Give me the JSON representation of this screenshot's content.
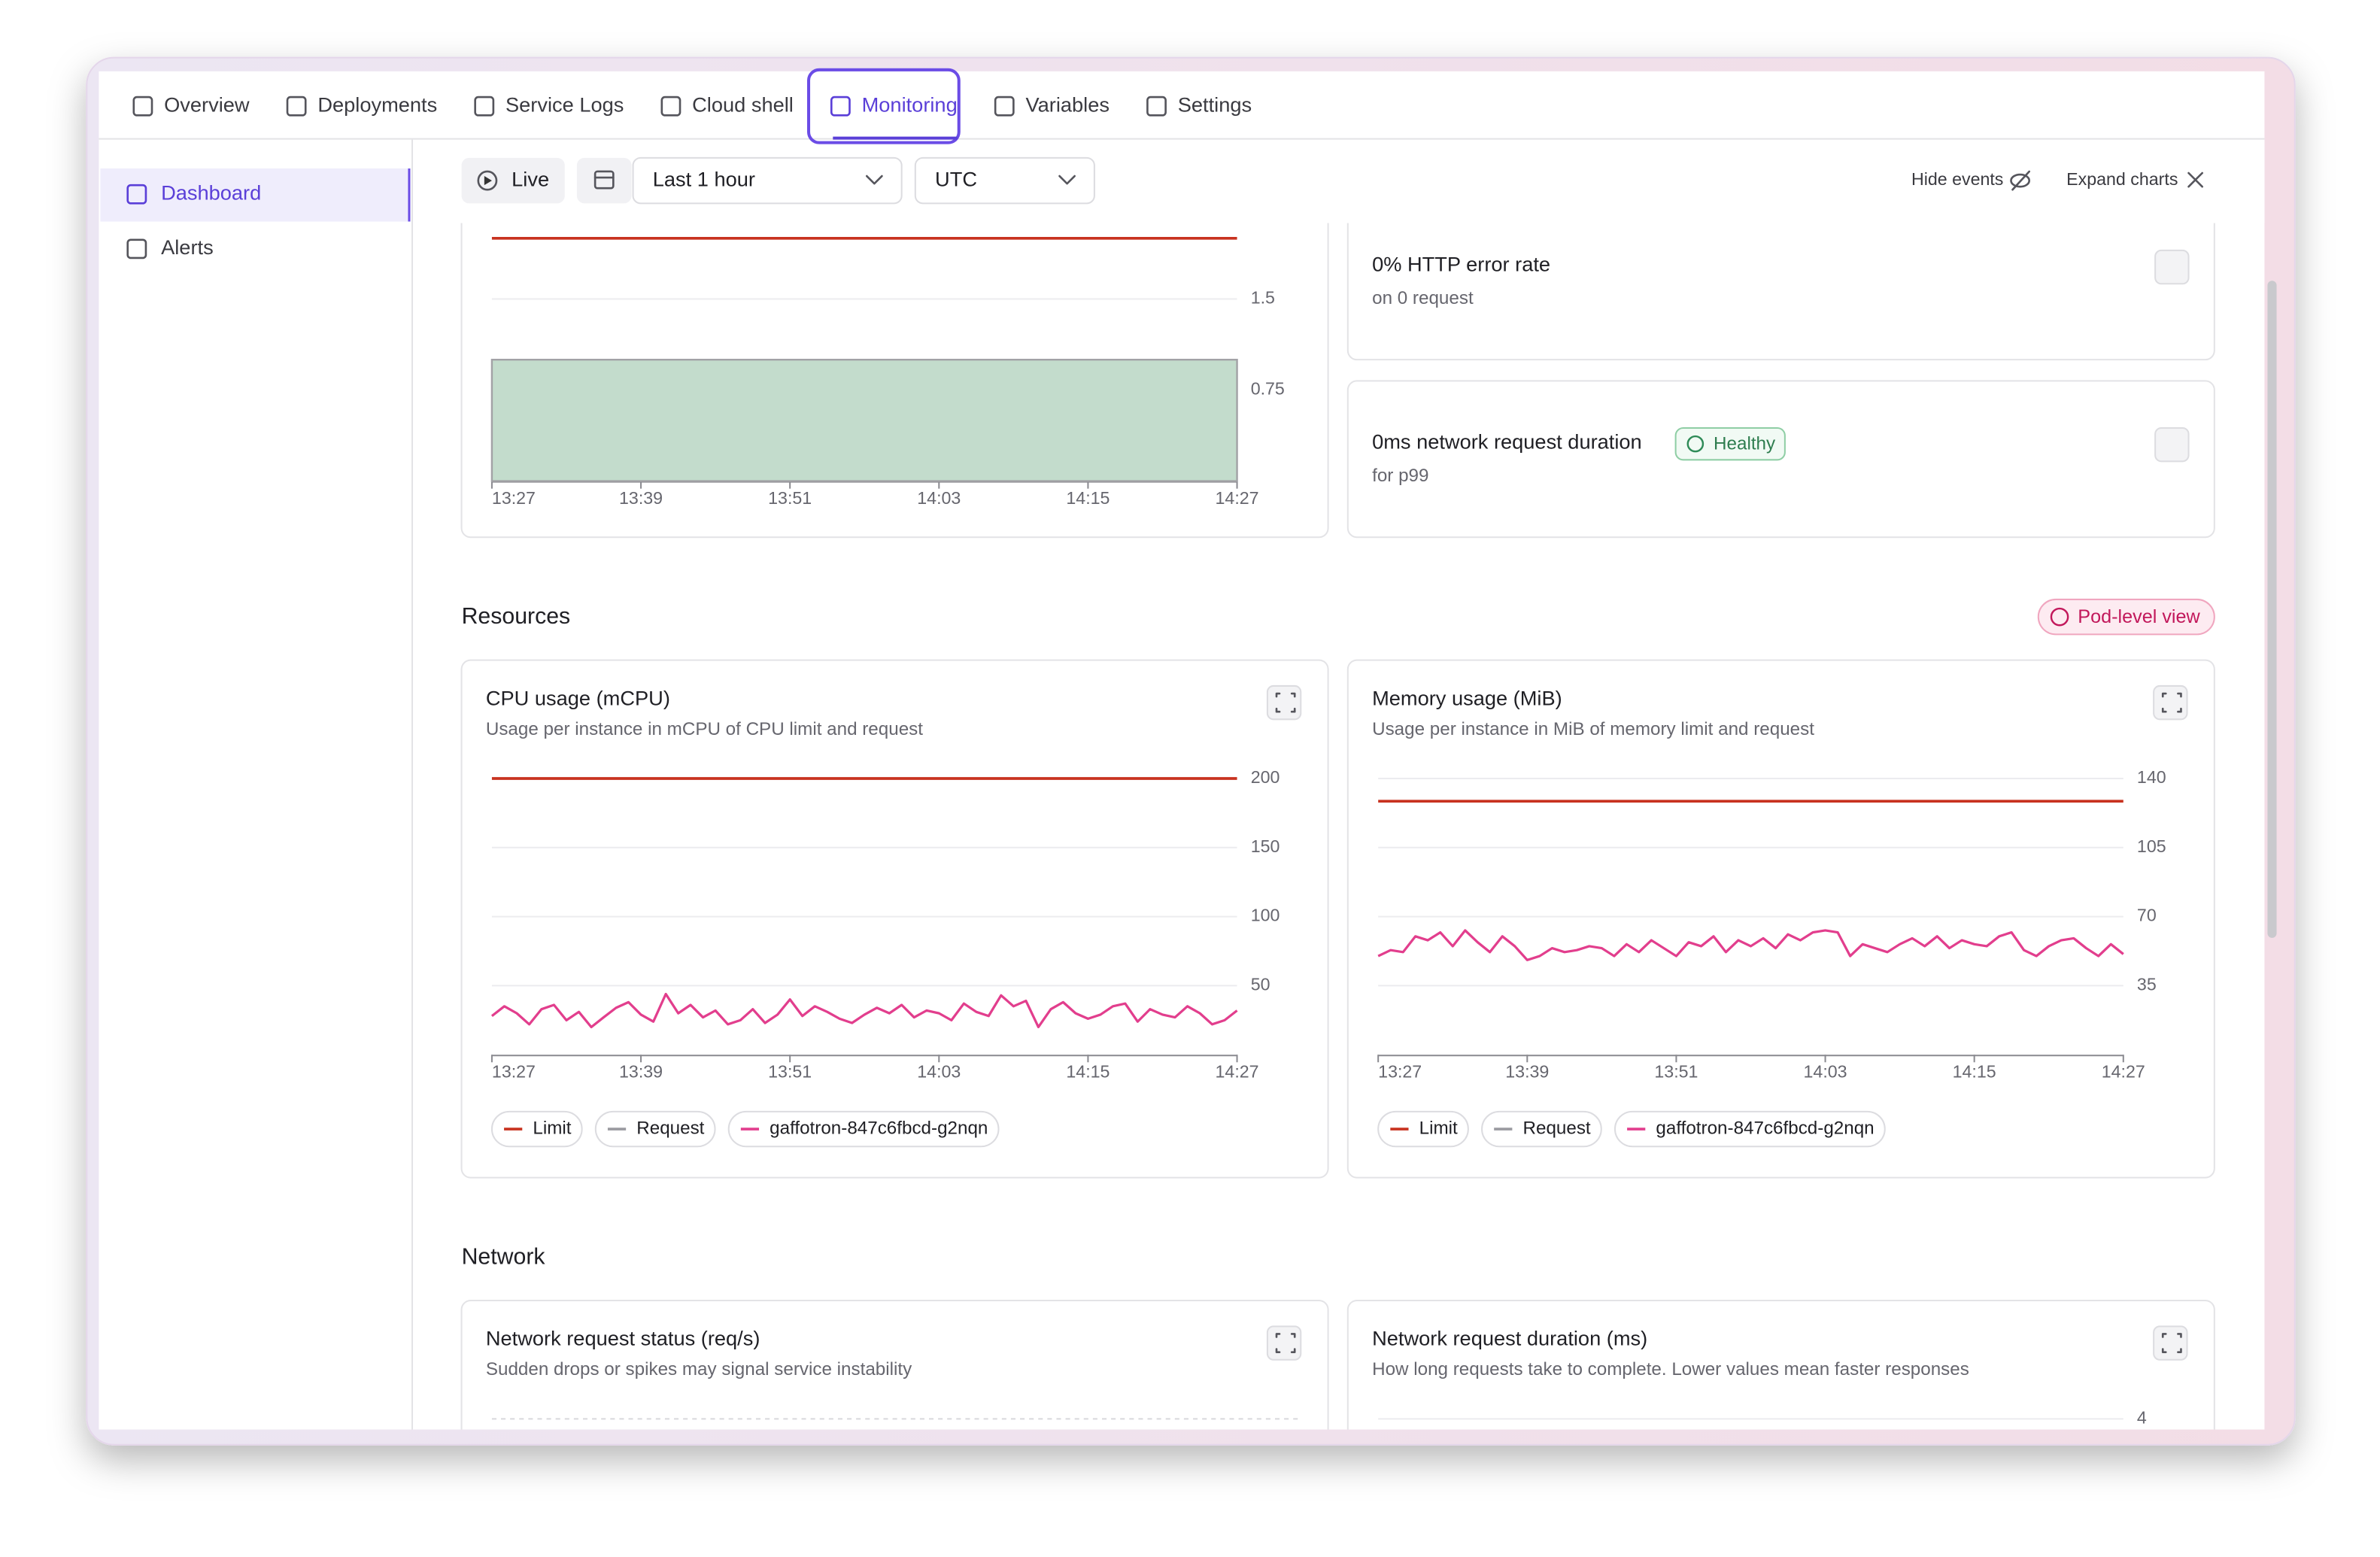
{
  "tabs": [
    "Overview",
    "Deployments",
    "Service Logs",
    "Cloud shell",
    "Monitoring",
    "Variables",
    "Settings"
  ],
  "active_tab": 4,
  "sidebar": {
    "items": [
      "Dashboard",
      "Alerts"
    ],
    "active": 0
  },
  "toolbar": {
    "live": "Live",
    "range": "Last 1 hour",
    "timezone": "UTC",
    "hide_events": "Hide events",
    "expand_charts": "Expand charts"
  },
  "stats": [
    {
      "title": "0% HTTP error rate",
      "subtitle": "on 0 request"
    },
    {
      "title": "0ms network request duration",
      "badge": "Healthy",
      "subtitle": "for p99"
    }
  ],
  "sections": [
    {
      "title": "Resources",
      "badge": "Pod-level view"
    },
    {
      "title": "Network"
    }
  ],
  "chart_data": [
    {
      "type": "area",
      "ylim": [
        0,
        2
      ],
      "yticks": [
        0.75,
        1.5
      ],
      "grid": true,
      "xticks": [
        "13:27",
        "13:39",
        "13:51",
        "14:03",
        "14:15",
        "14:27"
      ],
      "lines": [
        {
          "color": "#c8321f",
          "value": 2
        }
      ],
      "series": [
        {
          "color": "#c3dccc",
          "values": [
            1,
            1
          ]
        }
      ]
    },
    {
      "type": "line",
      "title": "CPU usage (mCPU)",
      "subtitle": "Usage per instance in mCPU of CPU limit and request",
      "ylim": [
        0,
        200
      ],
      "yticks": [
        50,
        100,
        150,
        200
      ],
      "grid": true,
      "xticks": [
        "13:27",
        "13:39",
        "13:51",
        "14:03",
        "14:15",
        "14:27"
      ],
      "lines": [
        {
          "name": "Limit",
          "color": "#c8321f",
          "value": 200
        },
        {
          "name": "Request",
          "color": "#9a9aa0",
          "value": null
        }
      ],
      "series": [
        {
          "name": "gaffotron-847c6fbcd-g2nqn",
          "color": "#e23e8d",
          "values": [
            28,
            35,
            30,
            22,
            33,
            36,
            25,
            31,
            20,
            27,
            34,
            38,
            29,
            24,
            44,
            30,
            36,
            27,
            32,
            22,
            25,
            33,
            23,
            29,
            40,
            28,
            35,
            31,
            26,
            23,
            29,
            34,
            30,
            36,
            27,
            32,
            30,
            25,
            37,
            31,
            28,
            43,
            35,
            39,
            20,
            33,
            38,
            30,
            26,
            29,
            35,
            37,
            24,
            33,
            29,
            27,
            35,
            30,
            22,
            25,
            32
          ]
        }
      ]
    },
    {
      "type": "line",
      "title": "Memory usage (MiB)",
      "subtitle": "Usage per instance in MiB of memory limit and request",
      "ylim": [
        0,
        140
      ],
      "yticks": [
        35,
        70,
        105,
        140
      ],
      "grid": true,
      "xticks": [
        "13:27",
        "13:39",
        "13:51",
        "14:03",
        "14:15",
        "14:27"
      ],
      "lines": [
        {
          "name": "Limit",
          "color": "#c8321f",
          "value": 128.5
        },
        {
          "name": "Request",
          "color": "#9a9aa0",
          "value": null
        }
      ],
      "series": [
        {
          "name": "gaffotron-847c6fbcd-g2nqn",
          "color": "#e23e8d",
          "values": [
            50,
            53,
            52,
            60,
            58,
            62,
            55,
            63,
            57,
            52,
            60,
            55,
            48,
            50,
            54,
            52,
            53,
            55,
            54,
            50,
            56,
            52,
            58,
            54,
            50,
            57,
            55,
            60,
            52,
            58,
            55,
            59,
            54,
            61,
            58,
            62,
            63,
            62,
            50,
            56,
            54,
            52,
            56,
            59,
            55,
            60,
            54,
            58,
            56,
            55,
            60,
            62,
            53,
            50,
            55,
            58,
            59,
            54,
            50,
            56,
            51
          ]
        }
      ]
    },
    {
      "type": "line",
      "title": "Network request status (req/s)",
      "subtitle": "Sudden drops or spikes may signal service instability"
    },
    {
      "type": "line",
      "title": "Network request duration (ms)",
      "subtitle": "How long requests take to complete. Lower values mean faster responses",
      "yticks": [
        4
      ],
      "grid": true
    }
  ]
}
